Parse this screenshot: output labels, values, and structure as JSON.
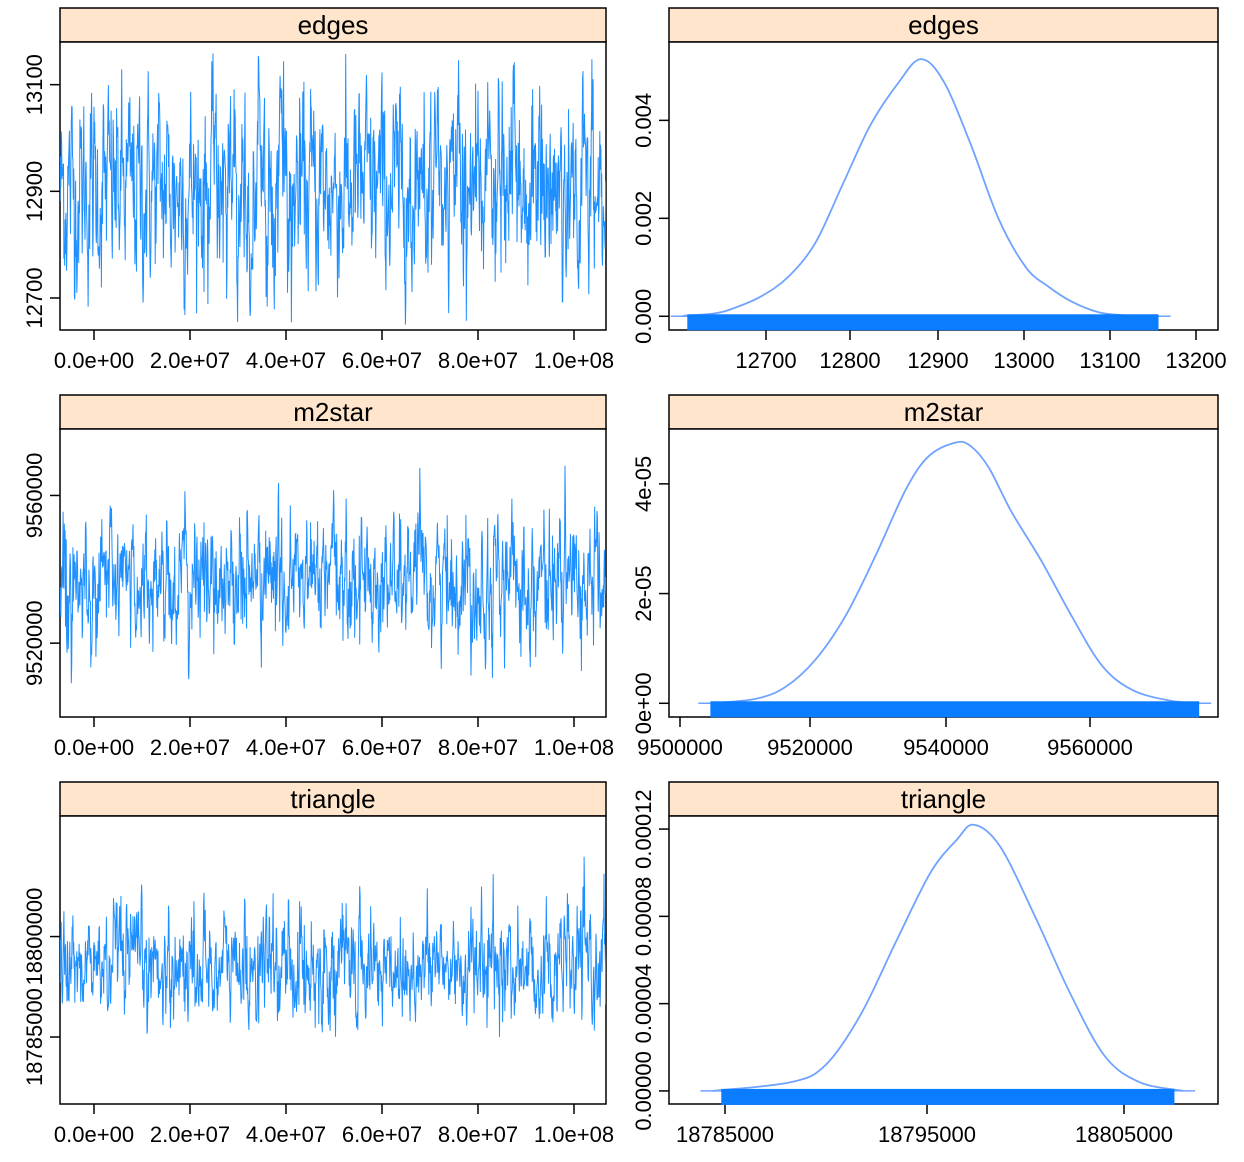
{
  "colors": {
    "strip_bg": "#ffe5cc",
    "trace": "#1e8fff",
    "density": "#6fa3ff",
    "rug": "#0a7cff",
    "frame": "#000000"
  },
  "chart_data": [
    {
      "type": "line",
      "panel": "trace",
      "title": "edges",
      "x_ticks": [
        "0.0e+00",
        "2.0e+07",
        "4.0e+07",
        "6.0e+07",
        "8.0e+07",
        "1.0e+08"
      ],
      "y_ticks": [
        "12700",
        "12900",
        "13100"
      ],
      "xlim": [
        0,
        100000000
      ],
      "ylim": [
        12640,
        13180
      ],
      "n_iterations": 100000000,
      "series": [
        {
          "mean": 12905,
          "sd": 90,
          "min": 12650,
          "max": 13160
        }
      ]
    },
    {
      "type": "line",
      "panel": "density",
      "title": "edges",
      "x_ticks": [
        "12700",
        "12800",
        "12900",
        "13000",
        "13100",
        "13200"
      ],
      "y_ticks": [
        "0.000",
        "0.002",
        "0.004"
      ],
      "xlim": [
        12630,
        13230
      ],
      "ylim": [
        -0.00028,
        0.0056
      ],
      "series": [
        {
          "x": [
            12645,
            12680,
            12700,
            12730,
            12760,
            12790,
            12820,
            12850,
            12880,
            12905,
            12930,
            12960,
            12990,
            13020,
            13045,
            13070,
            13100,
            13130,
            13165
          ],
          "y": [
            1e-05,
            6e-05,
            0.00016,
            0.0004,
            0.0008,
            0.0015,
            0.0027,
            0.0039,
            0.00475,
            0.00525,
            0.0048,
            0.0035,
            0.002,
            0.001,
            0.0006,
            0.0003,
            8e-05,
            2e-05,
            0.0
          ]
        }
      ],
      "rug": [
        12650,
        13165
      ]
    },
    {
      "type": "line",
      "panel": "trace",
      "title": "m2star",
      "x_ticks": [
        "0.0e+00",
        "2.0e+07",
        "4.0e+07",
        "6.0e+07",
        "8.0e+07",
        "1.0e+08"
      ],
      "y_ticks": [
        "9520000",
        "9560000"
      ],
      "xlim": [
        0,
        100000000
      ],
      "ylim": [
        9500000,
        9578000
      ],
      "n_iterations": 100000000,
      "series": [
        {
          "mean": 9537000,
          "sd": 8500,
          "min": 9504000,
          "max": 9570000
        }
      ]
    },
    {
      "type": "line",
      "panel": "density",
      "title": "m2star",
      "x_ticks": [
        "9500000",
        "9520000",
        "9540000",
        "9560000"
      ],
      "y_ticks": [
        "0e+00",
        "2e-05",
        "4e-05"
      ],
      "xlim": [
        9498500,
        9571500
      ],
      "ylim": [
        -2.5e-06,
        5e-05
      ],
      "series": [
        {
          "x": [
            9504000,
            9510000,
            9514000,
            9518000,
            9522000,
            9526000,
            9530000,
            9533000,
            9536500,
            9538500,
            9541000,
            9544000,
            9548000,
            9552000,
            9556000,
            9560000,
            9565000,
            9569000
          ],
          "y": [
            0.0,
            8e-07,
            3e-06,
            8e-06,
            1.6e-05,
            2.7e-05,
            3.9e-05,
            4.5e-05,
            4.75e-05,
            4.7e-05,
            4.3e-05,
            3.5e-05,
            2.6e-05,
            1.6e-05,
            7e-06,
            2.5e-06,
            5e-07,
            0.0
          ]
        }
      ],
      "rug": [
        9504000,
        9569000
      ]
    },
    {
      "type": "line",
      "panel": "trace",
      "title": "triangle",
      "x_ticks": [
        "0.0e+00",
        "2.0e+07",
        "4.0e+07",
        "6.0e+07",
        "8.0e+07",
        "1.0e+08"
      ],
      "y_ticks": [
        "18785000",
        "18800000"
      ],
      "xlim": [
        0,
        100000000
      ],
      "ylim": [
        18775000,
        18818000
      ],
      "n_iterations": 100000000,
      "series": [
        {
          "mean": 18795500,
          "sd": 4000,
          "min": 18782000,
          "max": 18812000
        }
      ]
    },
    {
      "type": "line",
      "panel": "density",
      "title": "triangle",
      "x_ticks": [
        "18785000",
        "18795000",
        "18805000"
      ],
      "y_ticks": [
        "0.00000",
        "0.00004",
        "0.00008",
        "0.00012"
      ],
      "y_tick_values": [
        0,
        4e-05,
        8e-05,
        0.00012
      ],
      "xlim": [
        18779000,
        18810500
      ],
      "ylim": [
        -6e-06,
        0.000126
      ],
      "series": [
        {
          "x": [
            18781500,
            18786000,
            18788000,
            18790000,
            18792000,
            18794000,
            18795500,
            18796500,
            18798000,
            18800000,
            18802000,
            18804000,
            18806000,
            18808500
          ],
          "y": [
            0.0,
            4e-06,
            1.2e-05,
            3.5e-05,
            6.8e-05,
            0.0001,
            0.000115,
            0.000122,
            0.000112,
            8e-05,
            4.5e-05,
            1.6e-05,
            4e-06,
            0.0
          ]
        }
      ],
      "rug": [
        18782000,
        18808000
      ]
    }
  ]
}
